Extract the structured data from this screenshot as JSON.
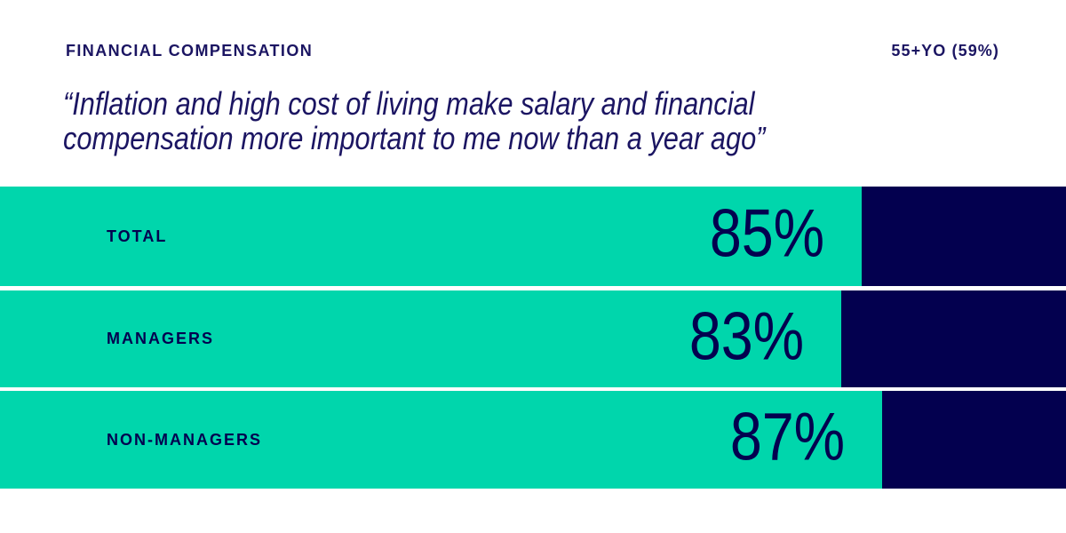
{
  "header": {
    "category_label": "FINANCIAL COMPENSATION",
    "segment_label": "55+YO (59%)"
  },
  "quote": {
    "line1": "“Inflation and high cost of living make salary and financial",
    "line2": "compensation more important to me now than a year ago”"
  },
  "colors": {
    "teal": "#00D6AC",
    "navy": "#03004F",
    "text_navy": "#1B1562",
    "background": "#FFFFFF"
  },
  "chart_data": {
    "type": "bar",
    "orientation": "horizontal",
    "title": "FINANCIAL COMPENSATION",
    "annotation": "55+YO (59%)",
    "subtitle_quote": "“Inflation and high cost of living make salary and financial compensation more important to me now than a year ago”",
    "categories": [
      "TOTAL",
      "MANAGERS",
      "NON-MANAGERS"
    ],
    "values": [
      85,
      83,
      87
    ],
    "unit": "%",
    "value_labels": [
      "85%",
      "83%",
      "87%"
    ],
    "xlim": [
      0,
      100
    ],
    "bar_color": "#00D6AC",
    "remainder_color": "#03004F",
    "grid": false,
    "legend": false
  }
}
